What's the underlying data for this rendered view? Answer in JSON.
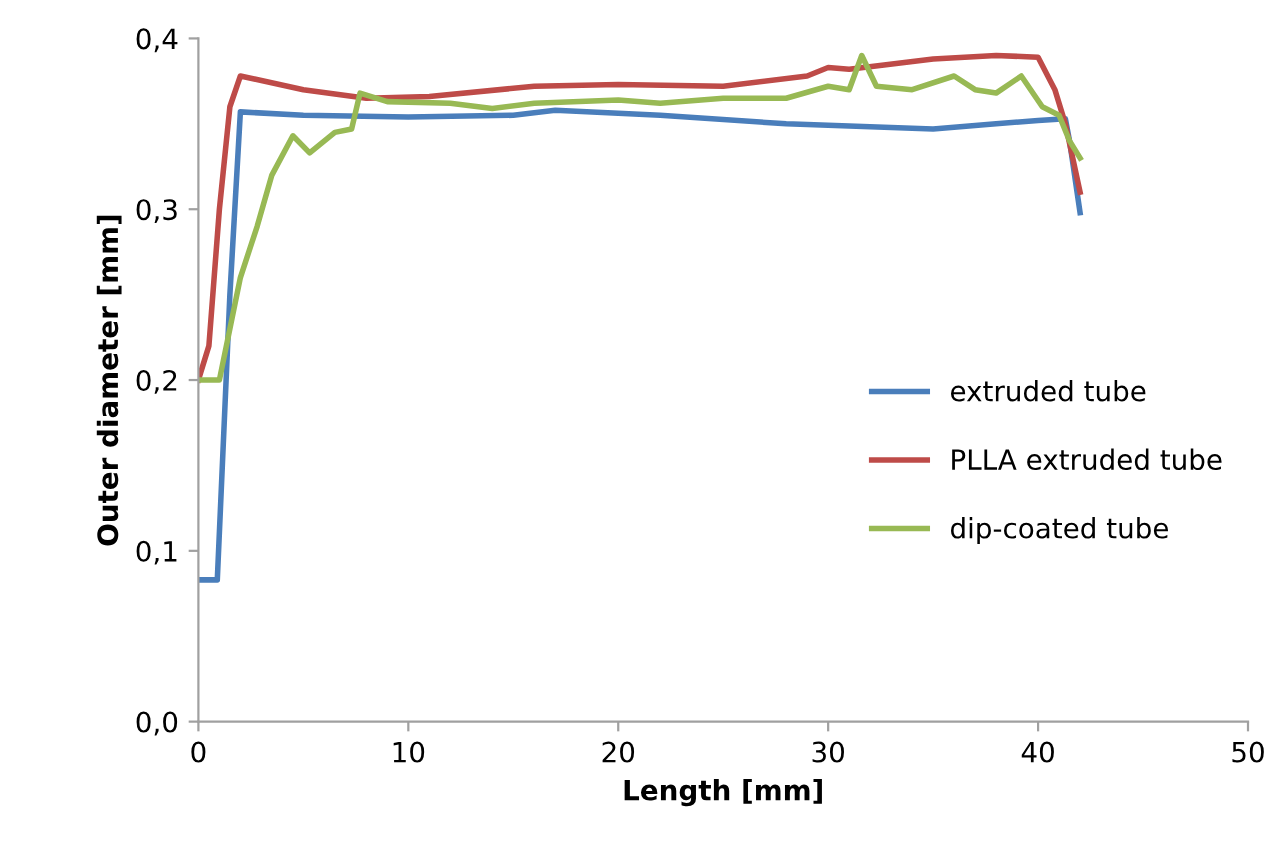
{
  "chart_data": {
    "type": "line",
    "xlabel": "Length [mm]",
    "ylabel": "Outer diameter [mm]",
    "xlim": [
      0,
      50
    ],
    "xticks": [
      0,
      10,
      20,
      30,
      40,
      50
    ],
    "ylim": [
      0,
      0.4
    ],
    "yticks": [
      {
        "value": 0,
        "label": "0,0"
      },
      {
        "value": 0.1,
        "label": "0,1"
      },
      {
        "value": 0.2,
        "label": "0,2"
      },
      {
        "value": 0.3,
        "label": "0,3"
      },
      {
        "value": 0.4,
        "label": "0,4"
      }
    ],
    "grid": false,
    "legend": "right",
    "marker": "none",
    "line_style": "solid",
    "series": [
      {
        "name": "extruded tube",
        "color": "#4a7ebb",
        "x": [
          0,
          0.9,
          1.5,
          2,
          5,
          10,
          15,
          17,
          22,
          28,
          35,
          38,
          40,
          41.3,
          41.5,
          42
        ],
        "values": [
          0.083,
          0.083,
          0.25,
          0.357,
          0.355,
          0.354,
          0.355,
          0.358,
          0.355,
          0.35,
          0.347,
          0.35,
          0.352,
          0.353,
          0.34,
          0.298
        ]
      },
      {
        "name": "PLLA extruded tube",
        "color": "#be4b48",
        "x": [
          0,
          0.5,
          1,
          1.5,
          2,
          5,
          8,
          11,
          16,
          20,
          25,
          29,
          30,
          31,
          35,
          38,
          40,
          40.8,
          41.3,
          42
        ],
        "values": [
          0.2,
          0.22,
          0.3,
          0.36,
          0.378,
          0.37,
          0.365,
          0.366,
          0.372,
          0.373,
          0.372,
          0.378,
          0.383,
          0.382,
          0.388,
          0.39,
          0.389,
          0.37,
          0.35,
          0.31
        ]
      },
      {
        "name": "dip-coated tube",
        "color": "#98b954",
        "x": [
          0,
          1,
          1.5,
          2,
          2.8,
          3.5,
          4.5,
          5.3,
          6.5,
          7.3,
          7.7,
          9,
          12,
          14,
          16,
          20,
          22,
          25,
          28,
          30,
          31,
          31.6,
          32.3,
          34,
          36,
          37,
          38,
          39.2,
          40.2,
          41,
          41.5,
          42
        ],
        "values": [
          0.2,
          0.2,
          0.23,
          0.26,
          0.29,
          0.32,
          0.343,
          0.333,
          0.345,
          0.347,
          0.368,
          0.363,
          0.362,
          0.359,
          0.362,
          0.364,
          0.362,
          0.365,
          0.365,
          0.372,
          0.37,
          0.39,
          0.372,
          0.37,
          0.378,
          0.37,
          0.368,
          0.378,
          0.36,
          0.355,
          0.34,
          0.33
        ]
      }
    ]
  }
}
